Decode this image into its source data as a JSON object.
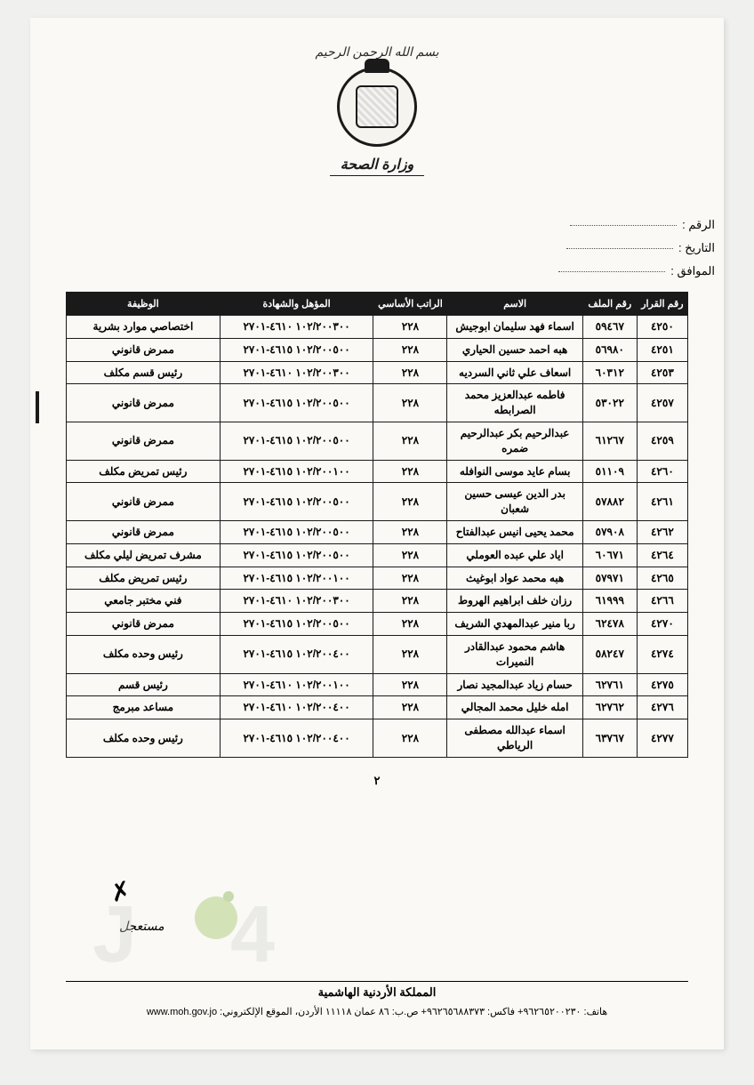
{
  "header": {
    "bismillah": "بسم الله الرحمن الرحيم",
    "ministry": "وزارة الصحة"
  },
  "meta": {
    "number_label": "الرقم",
    "date_label": "التاريخ",
    "corresponding_label": "الموافق"
  },
  "table": {
    "columns": [
      "رقم القرار",
      "رقم الملف",
      "الاسم",
      "الراتب الأساسي",
      "المؤهل والشهادة",
      "الوظيفة"
    ],
    "col_widths": [
      "52px",
      "60px",
      "150px",
      "48px",
      "170px",
      "170px"
    ],
    "rows": [
      {
        "c1": "٤٢٥٠",
        "c2": "٥٩٤٦٧",
        "c3": "اسماء فهد سليمان ابوجيش",
        "c4": "٢٢٨",
        "c5": "١٠٢/٢٠٠٣٠٠ ٤٦١٠-٢٧٠١",
        "c6": "اختصاصي موارد بشرية"
      },
      {
        "c1": "٤٢٥١",
        "c2": "٥٦٩٨٠",
        "c3": "هبه احمد حسين الحياري",
        "c4": "٢٢٨",
        "c5": "١٠٢/٢٠٠٥٠٠ ٤٦١٥-٢٧٠١",
        "c6": "ممرض قانوني"
      },
      {
        "c1": "٤٢٥٣",
        "c2": "٦٠٣١٢",
        "c3": "اسعاف علي ثاني السرديه",
        "c4": "٢٢٨",
        "c5": "١٠٢/٢٠٠٣٠٠ ٤٦١٠-٢٧٠١",
        "c6": "رئيس قسم مكلف"
      },
      {
        "c1": "٤٢٥٧",
        "c2": "٥٣٠٢٢",
        "c3": "فاطمه عبدالعزيز محمد الصرابطه",
        "c4": "٢٢٨",
        "c5": "١٠٢/٢٠٠٥٠٠ ٤٦١٥-٢٧٠١",
        "c6": "ممرض قانوني"
      },
      {
        "c1": "٤٢٥٩",
        "c2": "٦١٢٦٧",
        "c3": "عبدالرحيم بكر عبدالرحيم ضمره",
        "c4": "٢٢٨",
        "c5": "١٠٢/٢٠٠٥٠٠ ٤٦١٥-٢٧٠١",
        "c6": "ممرض قانوني"
      },
      {
        "c1": "٤٢٦٠",
        "c2": "٥١١٠٩",
        "c3": "بسام عايد موسى النوافله",
        "c4": "٢٢٨",
        "c5": "١٠٢/٢٠٠١٠٠ ٤٦١٥-٢٧٠١",
        "c6": "رئيس تمريض مكلف"
      },
      {
        "c1": "٤٢٦١",
        "c2": "٥٧٨٨٢",
        "c3": "بدر الدين عيسى حسين شعبان",
        "c4": "٢٢٨",
        "c5": "١٠٢/٢٠٠٥٠٠ ٤٦١٥-٢٧٠١",
        "c6": "ممرض قانوني"
      },
      {
        "c1": "٤٢٦٢",
        "c2": "٥٧٩٠٨",
        "c3": "محمد يحيى انيس عبدالفتاح",
        "c4": "٢٢٨",
        "c5": "١٠٢/٢٠٠٥٠٠ ٤٦١٥-٢٧٠١",
        "c6": "ممرض قانوني"
      },
      {
        "c1": "٤٢٦٤",
        "c2": "٦٠٦٧١",
        "c3": "اياد علي عبده العوملي",
        "c4": "٢٢٨",
        "c5": "١٠٢/٢٠٠٥٠٠ ٤٦١٥-٢٧٠١",
        "c6": "مشرف تمريض ليلي مكلف"
      },
      {
        "c1": "٤٢٦٥",
        "c2": "٥٧٩٧١",
        "c3": "هبه محمد عواد ابوغيث",
        "c4": "٢٢٨",
        "c5": "١٠٢/٢٠٠١٠٠ ٤٦١٥-٢٧٠١",
        "c6": "رئيس تمريض مكلف"
      },
      {
        "c1": "٤٢٦٦",
        "c2": "٦١٩٩٩",
        "c3": "رزان خلف ابراهيم الهروط",
        "c4": "٢٢٨",
        "c5": "١٠٢/٢٠٠٣٠٠ ٤٦١٠-٢٧٠١",
        "c6": "فني مختبر جامعي"
      },
      {
        "c1": "٤٢٧٠",
        "c2": "٦٢٤٧٨",
        "c3": "ربا منير عبدالمهدي الشريف",
        "c4": "٢٢٨",
        "c5": "١٠٢/٢٠٠٥٠٠ ٤٦١٥-٢٧٠١",
        "c6": "ممرض قانوني"
      },
      {
        "c1": "٤٢٧٤",
        "c2": "٥٨٢٤٧",
        "c3": "هاشم محمود عبدالقادر النميرات",
        "c4": "٢٢٨",
        "c5": "١٠٢/٢٠٠٤٠٠ ٤٦١٥-٢٧٠١",
        "c6": "رئيس وحده مكلف"
      },
      {
        "c1": "٤٢٧٥",
        "c2": "٦٢٧٦١",
        "c3": "حسام زياد عبدالمجيد نصار",
        "c4": "٢٢٨",
        "c5": "١٠٢/٢٠٠١٠٠ ٤٦١٠-٢٧٠١",
        "c6": "رئيس قسم"
      },
      {
        "c1": "٤٢٧٦",
        "c2": "٦٢٧٦٢",
        "c3": "امله خليل محمد المجالي",
        "c4": "٢٢٨",
        "c5": "١٠٢/٢٠٠٤٠٠ ٤٦١٠-٢٧٠١",
        "c6": "مساعد مبرمج"
      },
      {
        "c1": "٤٢٧٧",
        "c2": "٦٣٧٦٧",
        "c3": "اسماء عبدالله مصطفى الرياطي",
        "c4": "٢٢٨",
        "c5": "١٠٢/٢٠٠٤٠٠ ٤٦١٥-٢٧٠١",
        "c6": "رئيس وحده مكلف"
      }
    ]
  },
  "page_number": "٢",
  "stamp": "مستعجل",
  "footer": {
    "org": "المملكة الأردنية الهاشمية",
    "contact": "هاتف: ٩٦٢٦٥٢٠٠٢٣٠+ فاكس: ٩٦٢٦٥٦٨٨٣٧٣+ ص.ب: ٨٦ عمان ١١١١٨ الأردن، الموقع الإلكتروني:",
    "web": "www.moh.gov.jo"
  },
  "styling": {
    "bg": "#faf9f5",
    "border": "#1a1a1a",
    "header_bg": "#1a1a1a",
    "header_fg": "#ffffff",
    "watermark_gray": "#cfcfcf",
    "watermark_green": "#8fb94a"
  }
}
